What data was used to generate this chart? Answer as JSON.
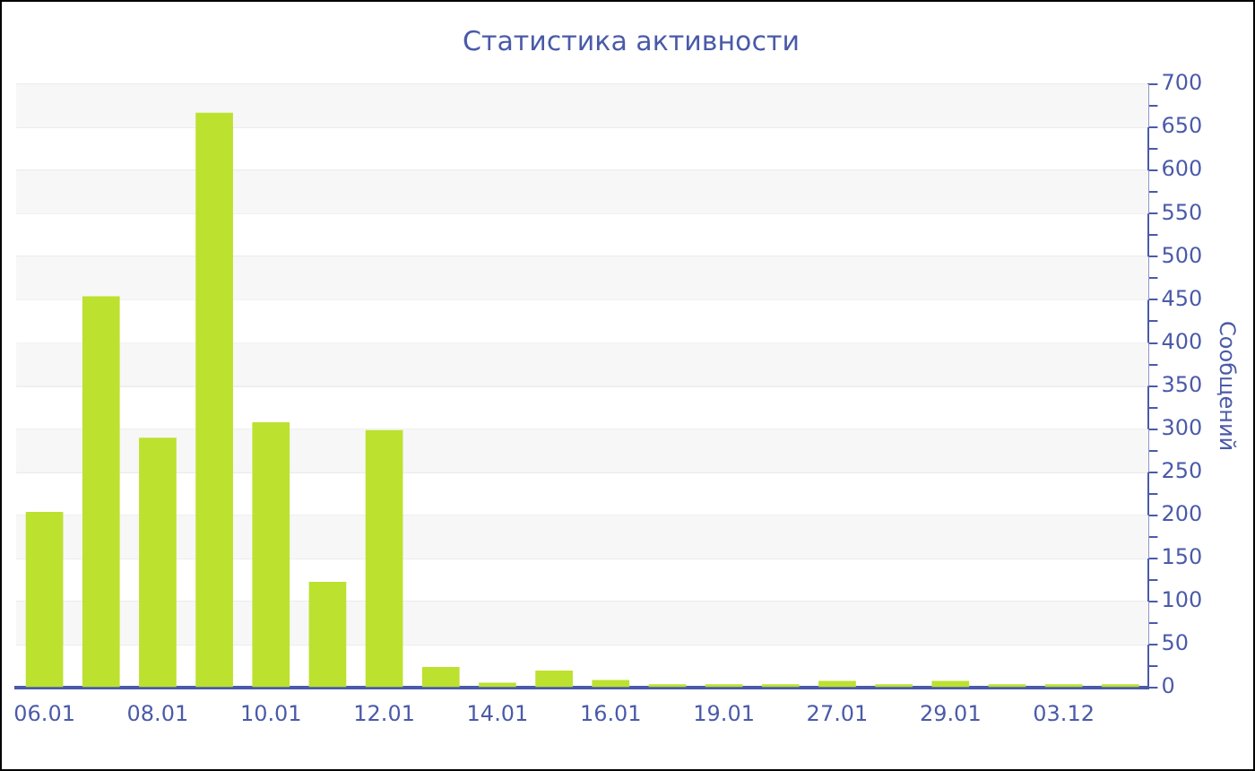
{
  "chart_data": {
    "type": "bar",
    "title": "Статистика активности",
    "ylabel": "Сообщений",
    "categories": [
      "06.01",
      null,
      "08.01",
      null,
      "10.01",
      null,
      "12.01",
      null,
      "14.01",
      null,
      "16.01",
      null,
      "19.01",
      null,
      "27.01",
      null,
      "29.01",
      null,
      "03.12",
      null
    ],
    "values": [
      204,
      454,
      290,
      667,
      308,
      123,
      299,
      24,
      6,
      20,
      9,
      4,
      4,
      4,
      8,
      4,
      8,
      4,
      4,
      4
    ],
    "color": "#bce12f",
    "ylim": [
      0,
      700
    ],
    "yticks": [
      0,
      {
        "value": 25,
        "label": null
      },
      50,
      {
        "value": 75,
        "label": null
      },
      100,
      {
        "value": 125,
        "label": null
      },
      150,
      {
        "value": 175,
        "label": null
      },
      200,
      {
        "value": 225,
        "label": null
      },
      250,
      {
        "value": 275,
        "label": null
      },
      300,
      {
        "value": 325,
        "label": null
      },
      350,
      {
        "value": 375,
        "label": null
      },
      400,
      {
        "value": 425,
        "label": null
      },
      450,
      {
        "value": 475,
        "label": null
      },
      500,
      {
        "value": 525,
        "label": null
      },
      550,
      {
        "value": 575,
        "label": null
      },
      600,
      {
        "value": 625,
        "label": null
      },
      650,
      {
        "value": 675,
        "label": null
      },
      700
    ],
    "grid": "y"
  }
}
